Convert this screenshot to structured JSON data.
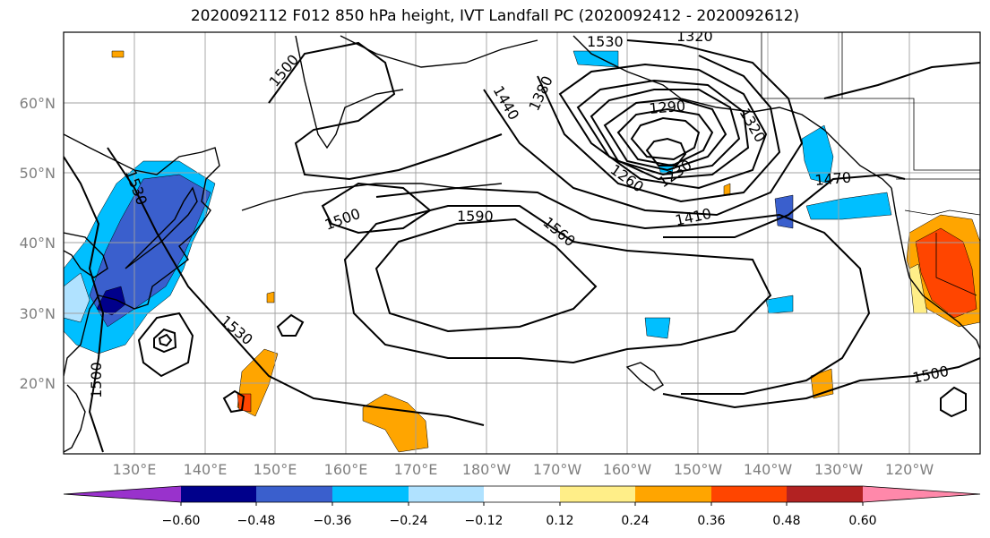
{
  "title": "2020092112 F012 850 hPa height, IVT Landfall PC (2020092412 - 2020092612)",
  "lat_labels": [
    "60°N",
    "50°N",
    "40°N",
    "30°N",
    "20°N"
  ],
  "lon_labels": [
    "130°E",
    "140°E",
    "150°E",
    "160°E",
    "170°E",
    "180°W",
    "170°W",
    "160°W",
    "150°W",
    "140°W",
    "130°W",
    "120°W"
  ],
  "contour_labels": [
    "1500",
    "1530",
    "1590",
    "1560",
    "1500",
    "1440",
    "1380",
    "1290",
    "1260",
    "1230",
    "1320",
    "1410",
    "1470",
    "1530",
    "1500",
    "1500",
    "1530",
    "1320"
  ],
  "colorbar": {
    "colors": [
      "#9932cc",
      "#00008b",
      "#3a5fcd",
      "#00bfff",
      "#b0e2ff",
      "#ffffff",
      "#ffee88",
      "#ffa500",
      "#ff4500",
      "#b22222",
      "#ff88aa"
    ],
    "tick_labels": [
      "−0.60",
      "−0.48",
      "−0.36",
      "−0.24",
      "−0.12",
      "0.12",
      "0.24",
      "0.36",
      "0.48",
      "0.60"
    ]
  }
}
